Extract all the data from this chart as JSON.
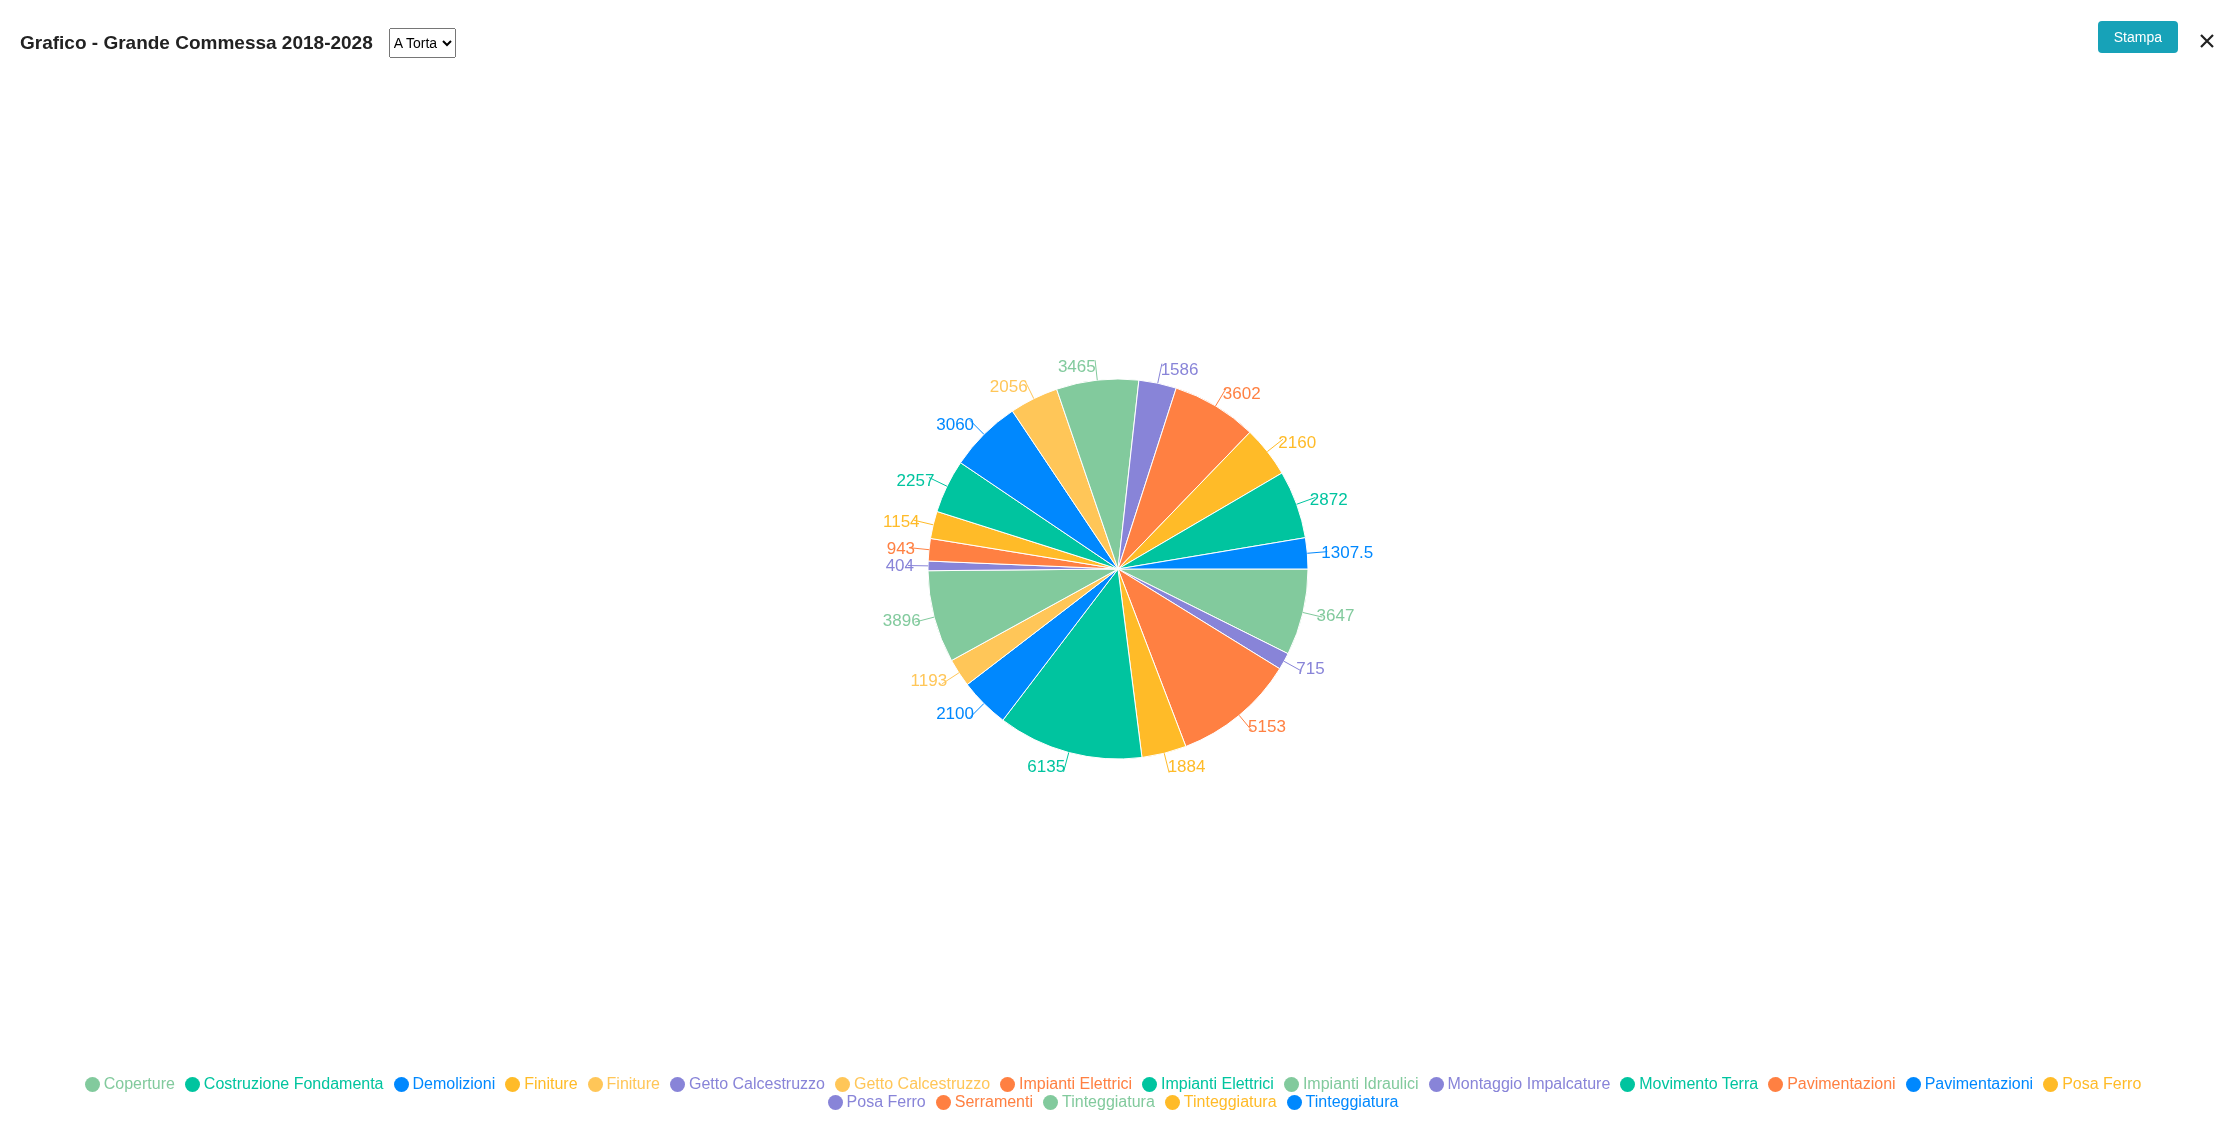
{
  "chart_data": {
    "type": "pie",
    "title": "Grafico - Grande Commessa 2018-2028",
    "annotations": [
      "A Torta",
      "Stampa"
    ],
    "categories": [
      "Coperture",
      "Getto Calcestruzzo",
      "Impianti Elettrici",
      "Finiture",
      "Costruzione Fondamenta",
      "Demolizioni",
      "Finiture",
      "Impianti Idraulici",
      "Montaggio Impalcature",
      "Pavimentazioni",
      "Posa Ferro",
      "Impianti Elettrici",
      "Pavimentazioni",
      "Getto Calcestruzzo",
      "Tinteggiatura",
      "Posa Ferro",
      "Serramenti",
      "Tinteggiatura",
      "Movimento Terra",
      "Tinteggiatura"
    ],
    "values": [
      3647,
      715,
      5153,
      1884,
      6135,
      2100,
      1193,
      3896,
      404,
      943,
      1154,
      2257,
      3060,
      2056,
      3465,
      1586,
      3602,
      2160,
      2872,
      1307.5
    ],
    "colors": [
      "#82ca9d",
      "#8884d8",
      "#ff8042",
      "#ffbb28",
      "#00c49f",
      "#0088fe",
      "#ffc658",
      "#82ca9d",
      "#8884d8",
      "#ff8042",
      "#ffbb28",
      "#00c49f",
      "#0088fe",
      "#ffc658",
      "#82ca9d",
      "#8884d8",
      "#ff8042",
      "#ffbb28",
      "#00c49f",
      "#0088fe"
    ],
    "data_labels": true,
    "legend": "bottom"
  }
}
